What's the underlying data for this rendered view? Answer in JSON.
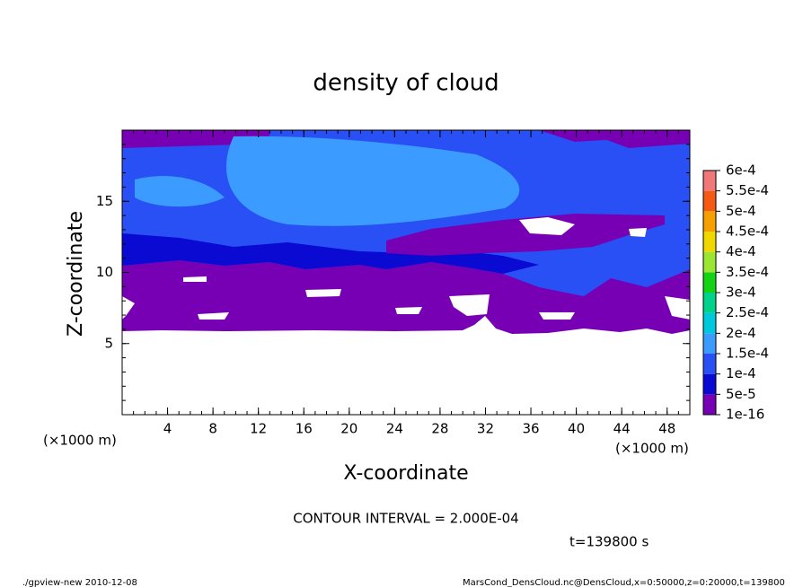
{
  "chart_data": {
    "type": "contour",
    "title": "density of cloud",
    "xlabel": "X-coordinate",
    "ylabel": "Z-coordinate",
    "xunit": "(×1000 m)",
    "yunit": "(×1000 m)",
    "xlim": [
      0,
      50
    ],
    "ylim": [
      0,
      20
    ],
    "xticks": [
      4,
      8,
      12,
      16,
      20,
      24,
      28,
      32,
      36,
      40,
      44,
      48
    ],
    "yticks": [
      5,
      10,
      15
    ],
    "colorbar": {
      "ticks": [
        {
          "value": 1e-16,
          "label": "1e-16"
        },
        {
          "value": 5e-05,
          "label": "5e-5"
        },
        {
          "value": 0.0001,
          "label": "1e-4"
        },
        {
          "value": 0.00015,
          "label": "1.5e-4"
        },
        {
          "value": 0.0002,
          "label": "2e-4"
        },
        {
          "value": 0.00025,
          "label": "2.5e-4"
        },
        {
          "value": 0.0003,
          "label": "3e-4"
        },
        {
          "value": 0.00035,
          "label": "3.5e-4"
        },
        {
          "value": 0.0004,
          "label": "4e-4"
        },
        {
          "value": 0.00045,
          "label": "4.5e-4"
        },
        {
          "value": 0.0005,
          "label": "5e-4"
        },
        {
          "value": 0.00055,
          "label": "5.5e-4"
        },
        {
          "value": 0.0006,
          "label": "6e-4"
        }
      ],
      "colors": [
        "#7800b4",
        "#0a0ad2",
        "#2850f5",
        "#3c9bff",
        "#00c8dc",
        "#00d28c",
        "#14d214",
        "#9be632",
        "#f0d700",
        "#f5a000",
        "#f55a14",
        "#f07878"
      ]
    },
    "contour_interval": "CONTOUR INTERVAL = 2.000E-04",
    "time_label": "t=139800 s",
    "footer_left": "./gpview-new   2010-12-08",
    "footer_right": "MarsCond_DensCloud.nc@DensCloud,x=0:50000,z=0:20000,t=139800"
  }
}
